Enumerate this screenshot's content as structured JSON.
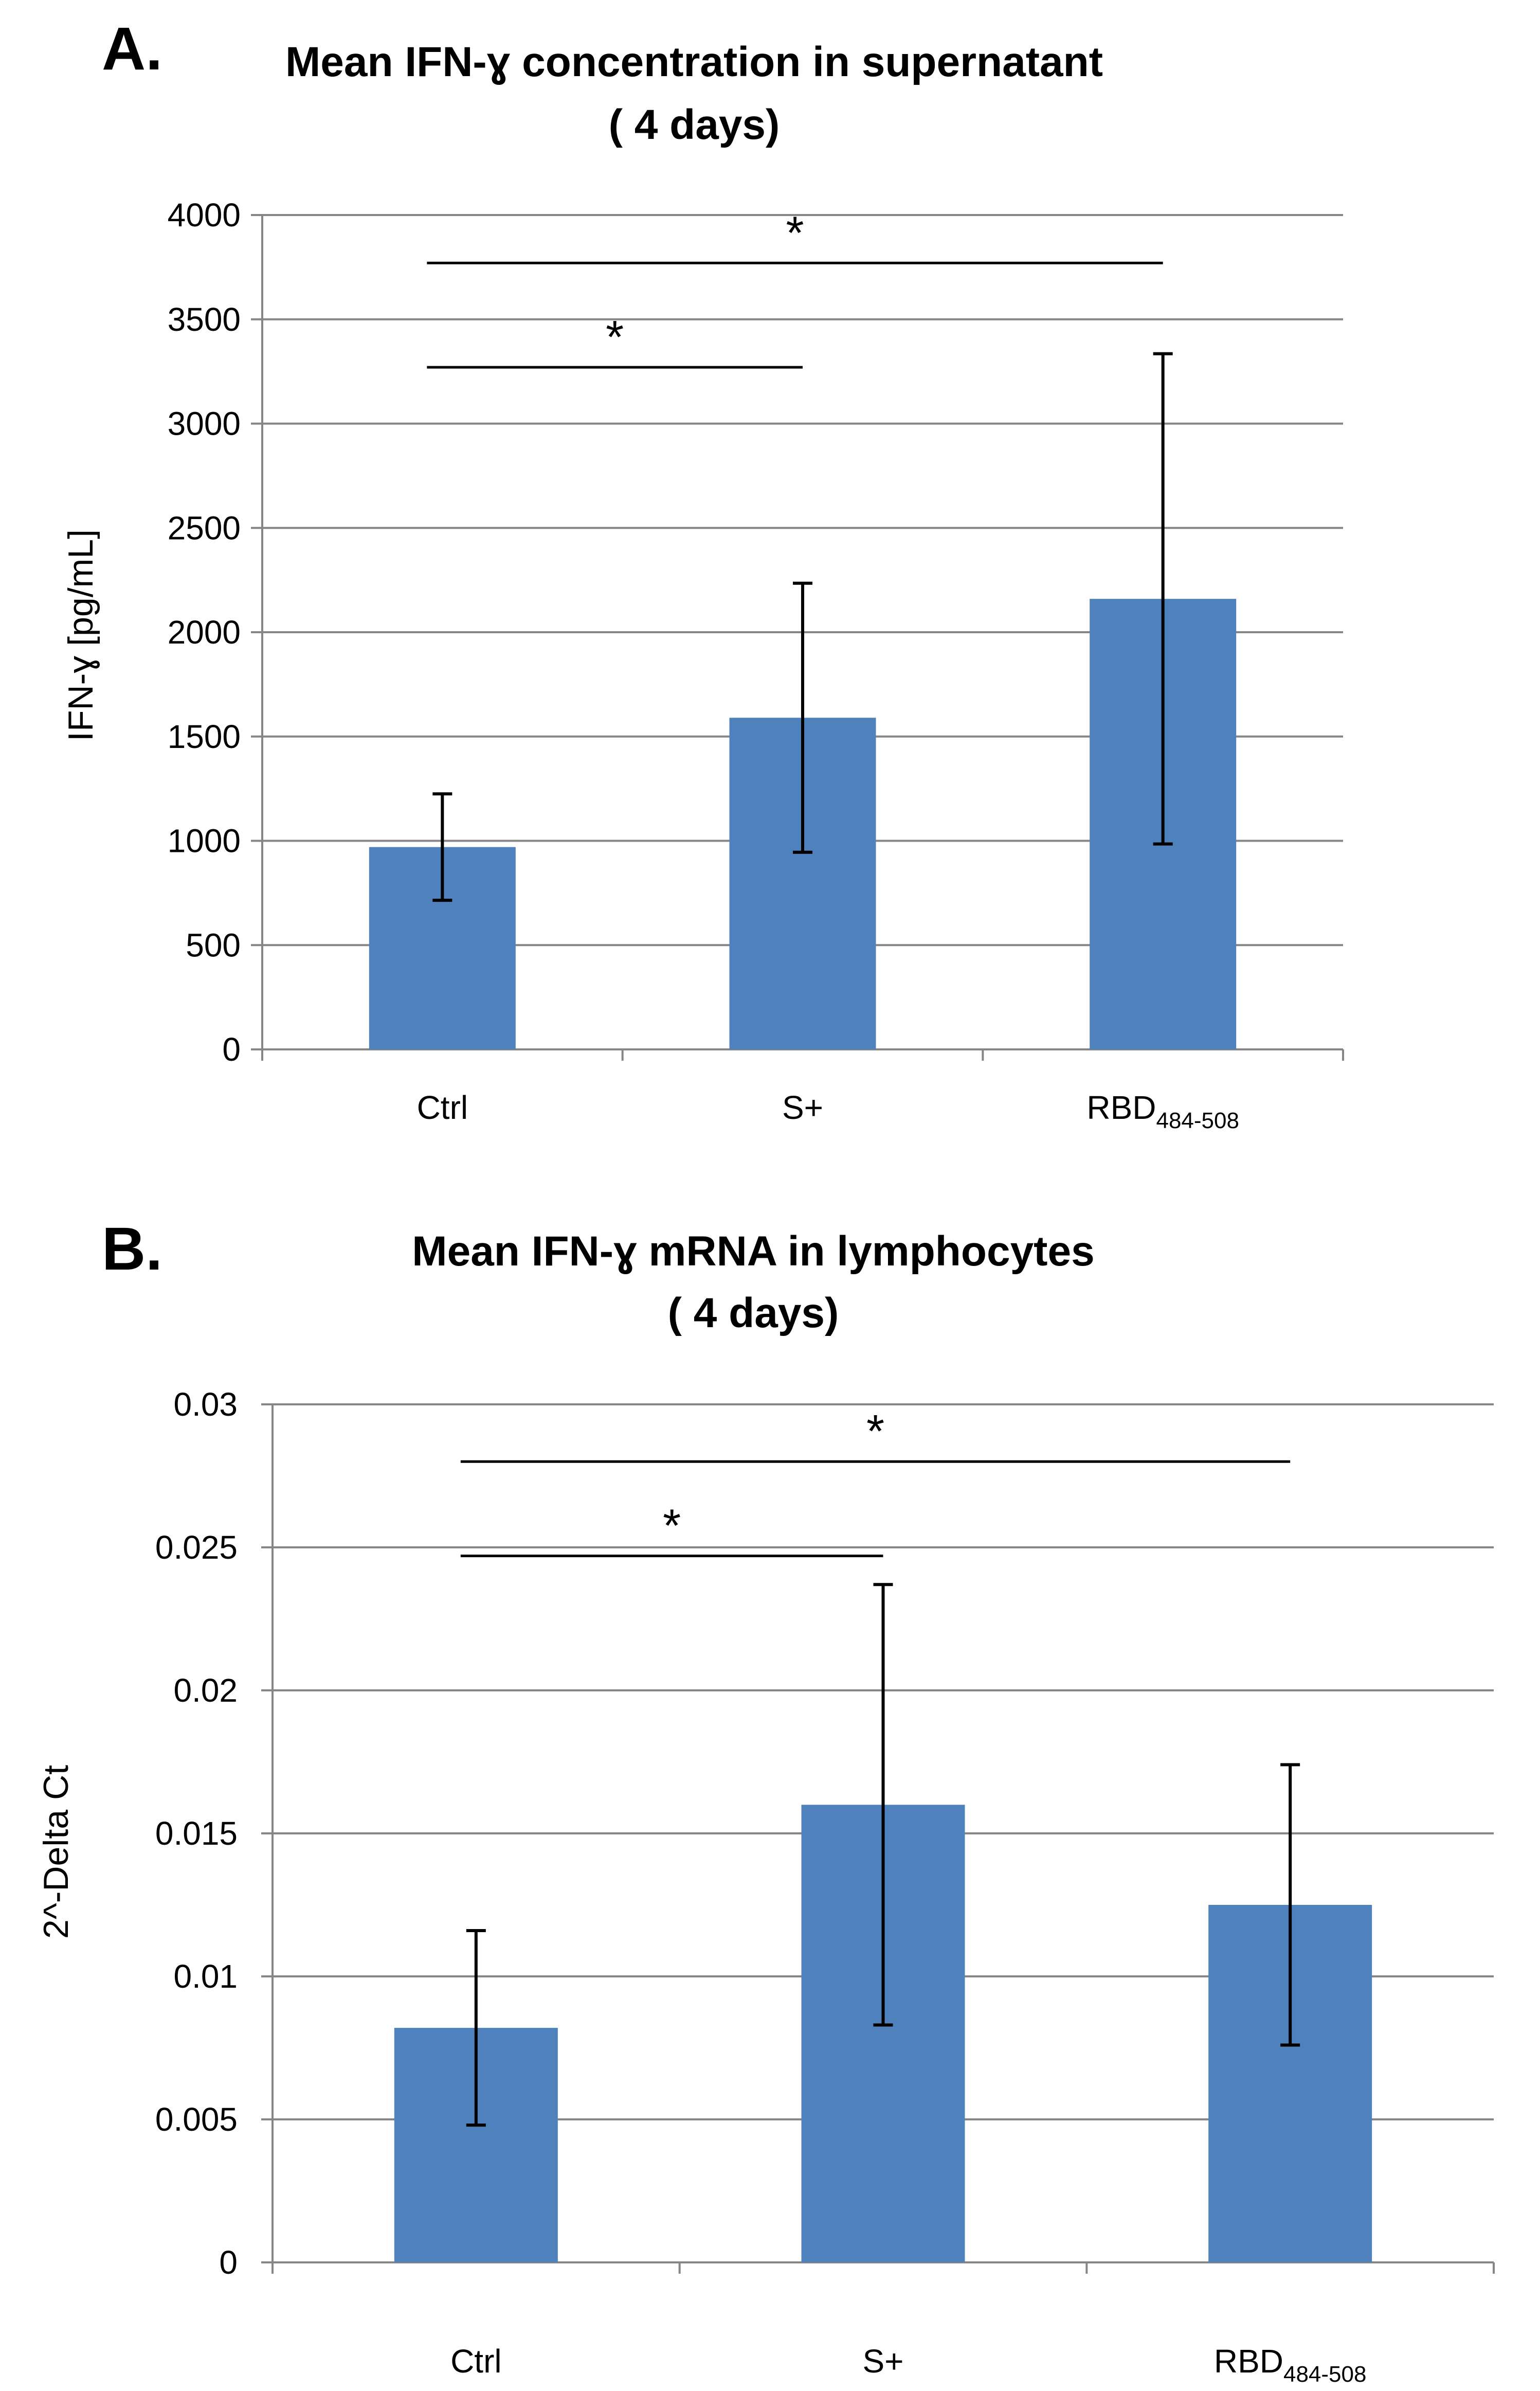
{
  "chart_data": [
    {
      "panel": "A.",
      "type": "bar",
      "title": "Mean IFN-ɣ concentration in supernatant",
      "subtitle": "( 4 days)",
      "xlabel": "",
      "ylabel": "IFN-ɣ [pg/mL]",
      "ylim": [
        0,
        4000
      ],
      "yticks": [
        0,
        500,
        1000,
        1500,
        2000,
        2500,
        3000,
        3500,
        4000
      ],
      "ytick_labels": [
        "0",
        "500",
        "1000",
        "1500",
        "2000",
        "2500",
        "3000",
        "3500",
        "4000"
      ],
      "categories": [
        {
          "main": "Ctrl",
          "sub": ""
        },
        {
          "main": "S+",
          "sub": ""
        },
        {
          "main": "RBD",
          "sub": "484-508"
        }
      ],
      "values": [
        970,
        1590,
        2160
      ],
      "errors": [
        255,
        645,
        1175
      ],
      "bar_color": "#4f81bd",
      "grid": true,
      "significance": [
        {
          "from": 0,
          "to": 1,
          "label": "*",
          "y": 3270
        },
        {
          "from": 0,
          "to": 2,
          "label": "*",
          "y": 3770
        }
      ]
    },
    {
      "panel": "B.",
      "type": "bar",
      "title": "Mean IFN-ɣ mRNA in lymphocytes",
      "subtitle": "( 4 days)",
      "xlabel": "",
      "ylabel": "2^-Delta Ct",
      "ylim": [
        0,
        0.03
      ],
      "yticks": [
        0,
        0.005,
        0.01,
        0.015,
        0.02,
        0.025,
        0.03
      ],
      "ytick_labels": [
        "0",
        "0.005",
        "0.01",
        "0.015",
        "0.02",
        "0.025",
        "0.03"
      ],
      "categories": [
        {
          "main": "Ctrl",
          "sub": ""
        },
        {
          "main": "S+",
          "sub": ""
        },
        {
          "main": "RBD",
          "sub": "484-508"
        }
      ],
      "values": [
        0.0082,
        0.016,
        0.0125
      ],
      "errors": [
        0.0034,
        0.0077,
        0.0049
      ],
      "bar_color": "#4f81bd",
      "grid": true,
      "significance": [
        {
          "from": 0,
          "to": 1,
          "label": "*",
          "y": 0.0247
        },
        {
          "from": 0,
          "to": 2,
          "label": "*",
          "y": 0.028
        }
      ]
    }
  ]
}
